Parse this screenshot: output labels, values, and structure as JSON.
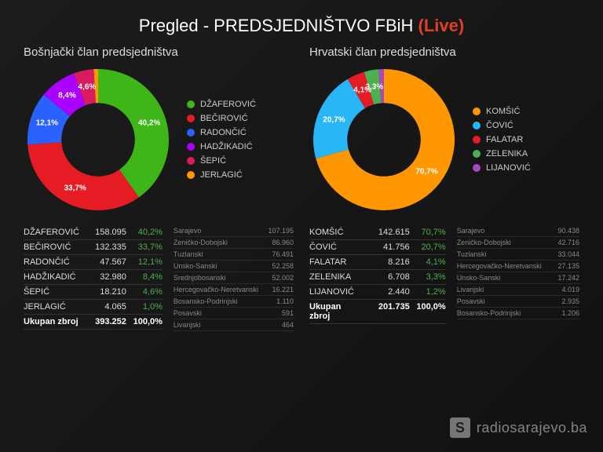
{
  "header": {
    "title_prefix": "Pregled - ",
    "title_main": "PREDSJEDNIŠTVO FBiH",
    "live_tag": "(Live)"
  },
  "panels": [
    {
      "title": "Bošnjački član predsjedništva",
      "chart": {
        "type": "donut",
        "inner_ratio": 0.52,
        "background_color": "#1a1a1a",
        "label_fontsize": 10,
        "slices": [
          {
            "name": "DŽAFEROVIĆ",
            "pct": 40.2,
            "color": "#3fb618",
            "label": "40,2%"
          },
          {
            "name": "BEČIROVIĆ",
            "pct": 33.7,
            "color": "#e51c23",
            "label": "33,7%"
          },
          {
            "name": "RADONČIĆ",
            "pct": 12.1,
            "color": "#2962ff",
            "label": "12,1%"
          },
          {
            "name": "HADŽIKADIĆ",
            "pct": 8.4,
            "color": "#aa00ff",
            "label": "8,4%"
          },
          {
            "name": "ŠEPIĆ",
            "pct": 4.6,
            "color": "#d81b60",
            "label": "4,6%"
          },
          {
            "name": "JERLAGIĆ",
            "pct": 1.0,
            "color": "#ff9800",
            "label": ""
          }
        ]
      },
      "results": {
        "rows": [
          {
            "name": "DŽAFEROVIĆ",
            "votes": "158.095",
            "pct": "40,2%"
          },
          {
            "name": "BEČIROVIĆ",
            "votes": "132.335",
            "pct": "33,7%"
          },
          {
            "name": "RADONČIĆ",
            "votes": "47.567",
            "pct": "12,1%"
          },
          {
            "name": "HADŽIKADIĆ",
            "votes": "32.980",
            "pct": "8,4%"
          },
          {
            "name": "ŠEPIĆ",
            "votes": "18.210",
            "pct": "4,6%"
          },
          {
            "name": "JERLAGIĆ",
            "votes": "4.065",
            "pct": "1,0%"
          }
        ],
        "total": {
          "name": "Ukupan zbroj",
          "votes": "393.252",
          "pct": "100,0%"
        }
      },
      "regions": [
        {
          "name": "Sarajevo",
          "val": "107.195"
        },
        {
          "name": "Zeničko-Dobojski",
          "val": "86.960"
        },
        {
          "name": "Tuzlanski",
          "val": "76.491"
        },
        {
          "name": "Unsko-Sanski",
          "val": "52.258"
        },
        {
          "name": "Srednjobosanski",
          "val": "52.002"
        },
        {
          "name": "Hercegovačko-Neretvanski",
          "val": "16.221"
        },
        {
          "name": "Bosansko-Podrinjski",
          "val": "1.110"
        },
        {
          "name": "Posavski",
          "val": "591"
        },
        {
          "name": "Livanjski",
          "val": "464"
        }
      ]
    },
    {
      "title": "Hrvatski član predsjedništva",
      "chart": {
        "type": "donut",
        "inner_ratio": 0.52,
        "background_color": "#1a1a1a",
        "label_fontsize": 10,
        "slices": [
          {
            "name": "KOMŠIĆ",
            "pct": 70.7,
            "color": "#ff9800",
            "label": "70,7%"
          },
          {
            "name": "ČOVIĆ",
            "pct": 20.7,
            "color": "#29b6f6",
            "label": "20,7%"
          },
          {
            "name": "FALATAR",
            "pct": 4.1,
            "color": "#e51c23",
            "label": "4,1%"
          },
          {
            "name": "ZELENIKA",
            "pct": 3.3,
            "color": "#4caf50",
            "label": "3,3%"
          },
          {
            "name": "LIJANOVIĆ",
            "pct": 1.2,
            "color": "#ab47bc",
            "label": ""
          }
        ]
      },
      "results": {
        "rows": [
          {
            "name": "KOMŠIĆ",
            "votes": "142.615",
            "pct": "70,7%"
          },
          {
            "name": "ČOVIĆ",
            "votes": "41.756",
            "pct": "20,7%"
          },
          {
            "name": "FALATAR",
            "votes": "8.216",
            "pct": "4,1%"
          },
          {
            "name": "ZELENIKA",
            "votes": "6.708",
            "pct": "3,3%"
          },
          {
            "name": "LIJANOVIĆ",
            "votes": "2.440",
            "pct": "1,2%"
          }
        ],
        "total": {
          "name": "Ukupan zbroj",
          "votes": "201.735",
          "pct": "100,0%"
        }
      },
      "regions": [
        {
          "name": "Sarajevo",
          "val": "90.438"
        },
        {
          "name": "Zeničko-Dobojski",
          "val": "42.716"
        },
        {
          "name": "Tuzlanski",
          "val": "33.044"
        },
        {
          "name": "Hercegovačko-Neretvanski",
          "val": "27.135"
        },
        {
          "name": "Unsko-Sanski",
          "val": "17.242"
        },
        {
          "name": "Livanjski",
          "val": "4.019"
        },
        {
          "name": "Posavski",
          "val": "2.935"
        },
        {
          "name": "Bosansko-Podrinjski",
          "val": "1.206"
        }
      ]
    }
  ],
  "watermark": {
    "logo": "S",
    "text": "radiosarajevo.ba"
  }
}
